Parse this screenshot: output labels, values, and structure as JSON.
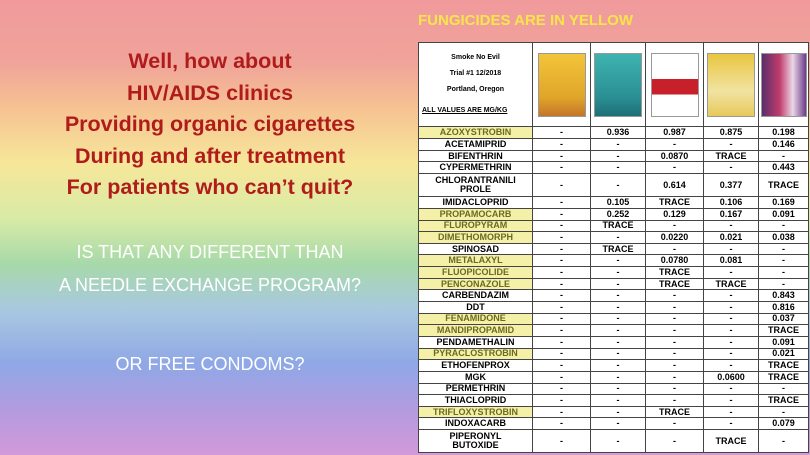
{
  "slide": {
    "title": [
      "Well, how about",
      "HIV/AIDS clinics",
      "Providing organic cigarettes",
      "During and after treatment",
      "For patients who can’t quit?"
    ],
    "question": [
      "IS THAT ANY DIFFERENT THAN",
      "A NEEDLE EXCHANGE PROGRAM?"
    ],
    "question2": "OR FREE CONDOMS?",
    "note": "FUNGICIDES ARE IN YELLOW"
  },
  "table": {
    "header": [
      "Smoke No Evil",
      "Trial #1 12/2018",
      "Portland, Oregon",
      "ALL VALUES ARE MG/KG"
    ],
    "rows": [
      {
        "name": "AZOXYSTROBIN",
        "fungicide": true,
        "values": [
          "-",
          "0.936",
          "0.987",
          "0.875",
          "0.198"
        ]
      },
      {
        "name": "ACETAMIPRID",
        "fungicide": false,
        "values": [
          "-",
          "-",
          "-",
          "-",
          "0.146"
        ]
      },
      {
        "name": "BIFENTHRIN",
        "fungicide": false,
        "values": [
          "-",
          "-",
          "0.0870",
          "TRACE",
          "-"
        ]
      },
      {
        "name": "CYPERMETHRIN",
        "fungicide": false,
        "values": [
          "-",
          "-",
          "-",
          "-",
          "0.443"
        ]
      },
      {
        "name": "CHLORANTRANILI\nPROLE",
        "fungicide": false,
        "values": [
          "-",
          "-",
          "0.614",
          "0.377",
          "TRACE"
        ]
      },
      {
        "name": "IMIDACLOPRID",
        "fungicide": false,
        "values": [
          "-",
          "0.105",
          "TRACE",
          "0.106",
          "0.169"
        ]
      },
      {
        "name": "PROPAMOCARB",
        "fungicide": true,
        "values": [
          "-",
          "0.252",
          "0.129",
          "0.167",
          "0.091"
        ]
      },
      {
        "name": "FLUROPYRAM",
        "fungicide": true,
        "values": [
          "-",
          "TRACE",
          "-",
          "-",
          "-"
        ]
      },
      {
        "name": "DIMETHOMORPH",
        "fungicide": true,
        "values": [
          "-",
          "-",
          "0.0220",
          "0.021",
          "0.038"
        ]
      },
      {
        "name": "SPINOSAD",
        "fungicide": false,
        "values": [
          "-",
          "TRACE",
          "-",
          "-",
          "-"
        ]
      },
      {
        "name": "METALAXYL",
        "fungicide": true,
        "values": [
          "-",
          "-",
          "0.0780",
          "0.081",
          "-"
        ]
      },
      {
        "name": "FLUOPICOLIDE",
        "fungicide": true,
        "values": [
          "-",
          "-",
          "TRACE",
          "-",
          "-"
        ]
      },
      {
        "name": "PENCONAZOLE",
        "fungicide": true,
        "values": [
          "-",
          "-",
          "TRACE",
          "TRACE",
          "-"
        ]
      },
      {
        "name": "CARBENDAZIM",
        "fungicide": false,
        "values": [
          "-",
          "-",
          "-",
          "-",
          "0.843"
        ]
      },
      {
        "name": "DDT",
        "fungicide": false,
        "values": [
          "-",
          "-",
          "-",
          "-",
          "0.816"
        ]
      },
      {
        "name": "FENAMIDONE",
        "fungicide": true,
        "values": [
          "-",
          "-",
          "-",
          "-",
          "0.037"
        ]
      },
      {
        "name": "MANDIPROPAMID",
        "fungicide": true,
        "values": [
          "-",
          "-",
          "-",
          "-",
          "TRACE"
        ]
      },
      {
        "name": "PENDAMETHALIN",
        "fungicide": false,
        "values": [
          "-",
          "-",
          "-",
          "-",
          "0.091"
        ]
      },
      {
        "name": "PYRACLOSTROBIN",
        "fungicide": true,
        "values": [
          "-",
          "-",
          "-",
          "-",
          "0.021"
        ]
      },
      {
        "name": "ETHOFENPROX",
        "fungicide": false,
        "values": [
          "-",
          "-",
          "-",
          "-",
          "TRACE"
        ]
      },
      {
        "name": "MGK",
        "fungicide": false,
        "values": [
          "-",
          "-",
          "-",
          "0.0600",
          "TRACE"
        ]
      },
      {
        "name": "PERMETHRIN",
        "fungicide": false,
        "values": [
          "-",
          "-",
          "-",
          "-",
          "-"
        ]
      },
      {
        "name": "THIACLOPRID",
        "fungicide": false,
        "values": [
          "-",
          "-",
          "-",
          "-",
          "TRACE"
        ]
      },
      {
        "name": "TRIFLOXYSTROBIN",
        "fungicide": true,
        "values": [
          "-",
          "-",
          "TRACE",
          "-",
          "-"
        ]
      },
      {
        "name": "INDOXACARB",
        "fungicide": false,
        "values": [
          "-",
          "-",
          "-",
          "-",
          "0.079"
        ]
      },
      {
        "name": "PIPERONYL\nBUTOXIDE",
        "fungicide": false,
        "values": [
          "-",
          "-",
          "-",
          "TRACE",
          "-"
        ]
      }
    ]
  }
}
